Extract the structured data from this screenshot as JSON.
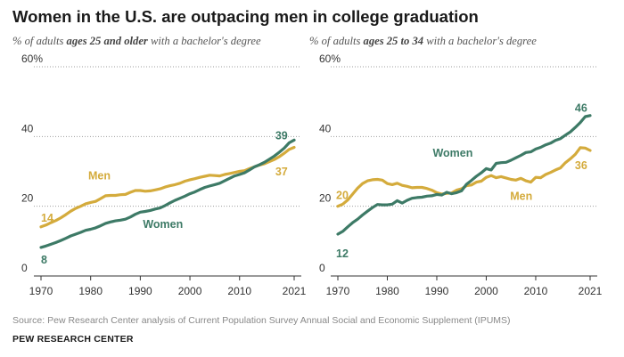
{
  "title": "Women in the U.S. are outpacing men in college graduation",
  "colors": {
    "women": "#3d7a66",
    "men": "#d4ab3c",
    "grid": "#9e9e9e",
    "axis": "#333333",
    "tick_text": "#333333"
  },
  "panels": [
    {
      "subtitle": {
        "pre": "% of adults ",
        "bold": "ages 25 and older",
        "post": " with a bachelor's degree"
      },
      "ytick_labels": [
        "0",
        "20",
        "40",
        "60%"
      ],
      "xtick_labels": [
        "1970",
        "1980",
        "1990",
        "2000",
        "2010",
        "2021"
      ],
      "series_labels": {
        "men": "Men",
        "women": "Women"
      },
      "end_labels": {
        "men_start": "14",
        "women_start": "8",
        "men_end": "37",
        "women_end": "39"
      }
    },
    {
      "subtitle": {
        "pre": "% of adults ",
        "bold": "ages 25 to 34",
        "post": " with a bachelor's degree"
      },
      "ytick_labels": [
        "0",
        "20",
        "40",
        "60%"
      ],
      "xtick_labels": [
        "1970",
        "1980",
        "1990",
        "2000",
        "2010",
        "2021"
      ],
      "series_labels": {
        "men": "Men",
        "women": "Women"
      },
      "end_labels": {
        "men_start": "20",
        "women_start": "12",
        "men_end": "36",
        "women_end": "46"
      }
    }
  ],
  "source": "Source: Pew Research Center analysis of Current Population Survey Annual Social and Economic Supplement (IPUMS)",
  "org": "PEW RESEARCH CENTER",
  "chart_data": [
    {
      "type": "line",
      "ylim": [
        0,
        60
      ],
      "xlim": [
        1970,
        2021
      ],
      "x": [
        1970,
        1971,
        1972,
        1973,
        1974,
        1975,
        1976,
        1977,
        1978,
        1979,
        1980,
        1981,
        1982,
        1983,
        1984,
        1985,
        1986,
        1987,
        1988,
        1989,
        1990,
        1991,
        1992,
        1993,
        1994,
        1995,
        1996,
        1997,
        1998,
        1999,
        2000,
        2001,
        2002,
        2003,
        2004,
        2005,
        2006,
        2007,
        2008,
        2009,
        2010,
        2011,
        2012,
        2013,
        2014,
        2015,
        2016,
        2017,
        2018,
        2019,
        2020,
        2021
      ],
      "series": [
        {
          "name": "Men",
          "values": [
            14.1,
            14.6,
            15.3,
            15.9,
            16.7,
            17.6,
            18.6,
            19.4,
            20.0,
            20.7,
            21.1,
            21.4,
            22.2,
            23.0,
            23.1,
            23.1,
            23.3,
            23.4,
            24.0,
            24.5,
            24.5,
            24.3,
            24.4,
            24.7,
            25.0,
            25.5,
            25.9,
            26.2,
            26.6,
            27.2,
            27.6,
            27.9,
            28.3,
            28.6,
            28.9,
            28.8,
            28.7,
            29.1,
            29.4,
            29.7,
            30.0,
            30.2,
            30.8,
            31.3,
            31.8,
            32.2,
            32.8,
            33.4,
            34.2,
            35.2,
            36.3,
            36.9
          ]
        },
        {
          "name": "Women",
          "values": [
            8.2,
            8.6,
            9.1,
            9.6,
            10.2,
            10.8,
            11.5,
            12.0,
            12.5,
            13.1,
            13.4,
            13.8,
            14.4,
            15.1,
            15.5,
            15.8,
            16.0,
            16.3,
            16.9,
            17.7,
            18.3,
            18.5,
            18.8,
            19.2,
            19.5,
            20.2,
            21.0,
            21.7,
            22.3,
            22.9,
            23.6,
            24.1,
            24.8,
            25.4,
            25.8,
            26.2,
            26.6,
            27.3,
            28.0,
            28.7,
            29.1,
            29.6,
            30.4,
            31.3,
            31.9,
            32.6,
            33.5,
            34.4,
            35.5,
            36.7,
            38.2,
            39.0
          ]
        }
      ]
    },
    {
      "type": "line",
      "ylim": [
        0,
        60
      ],
      "xlim": [
        1970,
        2021
      ],
      "x": [
        1970,
        1971,
        1972,
        1973,
        1974,
        1975,
        1976,
        1977,
        1978,
        1979,
        1980,
        1981,
        1982,
        1983,
        1984,
        1985,
        1986,
        1987,
        1988,
        1989,
        1990,
        1991,
        1992,
        1993,
        1994,
        1995,
        1996,
        1997,
        1998,
        1999,
        2000,
        2001,
        2002,
        2003,
        2004,
        2005,
        2006,
        2007,
        2008,
        2009,
        2010,
        2011,
        2012,
        2013,
        2014,
        2015,
        2016,
        2017,
        2018,
        2019,
        2020,
        2021
      ],
      "series": [
        {
          "name": "Men",
          "values": [
            20.0,
            20.6,
            21.8,
            23.5,
            25.2,
            26.5,
            27.3,
            27.6,
            27.7,
            27.5,
            26.5,
            26.2,
            26.6,
            26.0,
            25.7,
            25.3,
            25.4,
            25.4,
            25.1,
            24.6,
            23.9,
            23.5,
            23.7,
            23.8,
            24.6,
            25.0,
            25.9,
            26.1,
            26.9,
            27.2,
            28.3,
            28.8,
            28.2,
            28.5,
            28.1,
            27.7,
            27.5,
            28.0,
            27.3,
            26.9,
            28.3,
            28.2,
            29.1,
            29.7,
            30.4,
            31.0,
            32.5,
            33.6,
            34.9,
            36.8,
            36.7,
            36.0
          ]
        },
        {
          "name": "Women",
          "values": [
            12.0,
            12.8,
            14.1,
            15.3,
            16.3,
            17.5,
            18.6,
            19.6,
            20.5,
            20.4,
            20.4,
            20.6,
            21.6,
            20.9,
            21.7,
            22.3,
            22.5,
            22.6,
            22.9,
            23.0,
            23.4,
            23.2,
            24.0,
            23.6,
            23.9,
            24.4,
            26.3,
            27.4,
            28.6,
            29.6,
            30.8,
            30.4,
            32.3,
            32.5,
            32.6,
            33.2,
            33.9,
            34.6,
            35.4,
            35.6,
            36.4,
            36.9,
            37.6,
            38.1,
            38.9,
            39.4,
            40.4,
            41.3,
            42.6,
            44.0,
            45.7,
            46.0
          ]
        }
      ]
    }
  ]
}
